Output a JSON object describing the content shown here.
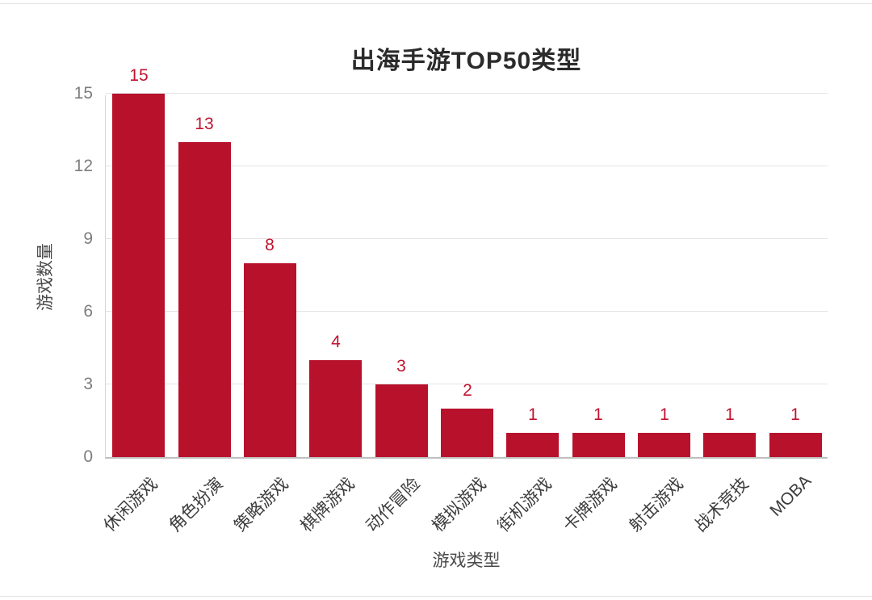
{
  "page": {
    "background": "#ffffff"
  },
  "chart_data": {
    "type": "bar",
    "title": "出海手游TOP50类型",
    "xlabel": "游戏类型",
    "ylabel": "游戏数量",
    "categories": [
      "休闲游戏",
      "角色扮演",
      "策略游戏",
      "棋牌游戏",
      "动作冒险",
      "模拟游戏",
      "街机游戏",
      "卡牌游戏",
      "射击游戏",
      "战术竞技",
      "MOBA"
    ],
    "values": [
      15,
      13,
      8,
      4,
      3,
      2,
      1,
      1,
      1,
      1,
      1
    ],
    "ylim": [
      0,
      15
    ],
    "yticks": [
      0,
      3,
      6,
      9,
      12,
      15
    ],
    "grid": true,
    "legend": "none",
    "bar_color": "#b8112c",
    "value_label_color": "#c01330",
    "tick_text_color": "#7d7d7d",
    "category_text_color": "#3d3d3d"
  }
}
